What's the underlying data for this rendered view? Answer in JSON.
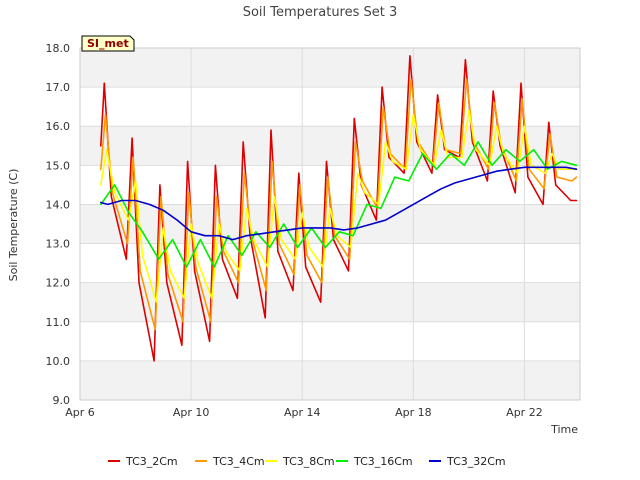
{
  "chart_data": {
    "type": "line",
    "title": "Soil Temperatures Set 3",
    "site_label": "SI_met",
    "xlabel": "Time",
    "ylabel": "Soil Temperature (C)",
    "ylim": [
      9.0,
      18.0
    ],
    "yticks": [
      9.0,
      10.0,
      11.0,
      12.0,
      13.0,
      14.0,
      15.0,
      16.0,
      17.0,
      18.0
    ],
    "xlim": [
      "2024-04-06",
      "2024-04-24"
    ],
    "xticks": [
      {
        "date": "2024-04-06",
        "label": "Apr 6"
      },
      {
        "date": "2024-04-10",
        "label": "Apr 10"
      },
      {
        "date": "2024-04-14",
        "label": "Apr 14"
      },
      {
        "date": "2024-04-18",
        "label": "Apr 18"
      },
      {
        "date": "2024-04-22",
        "label": "Apr 22"
      }
    ],
    "grid": true,
    "legend_position": "bottom",
    "series": [
      {
        "name": "TC3_2Cm",
        "color": "#dd0000",
        "x": [
          "2024-04-06 18:00",
          "2024-04-06 21:00",
          "2024-04-07 03:00",
          "2024-04-07 16:00",
          "2024-04-07 21:00",
          "2024-04-08 03:00",
          "2024-04-08 16:00",
          "2024-04-08 21:00",
          "2024-04-09 03:00",
          "2024-04-09 16:00",
          "2024-04-09 21:00",
          "2024-04-10 03:00",
          "2024-04-10 16:00",
          "2024-04-10 21:00",
          "2024-04-11 03:00",
          "2024-04-11 16:00",
          "2024-04-11 21:00",
          "2024-04-12 03:00",
          "2024-04-12 16:00",
          "2024-04-12 21:00",
          "2024-04-13 03:00",
          "2024-04-13 16:00",
          "2024-04-13 21:00",
          "2024-04-14 03:00",
          "2024-04-14 16:00",
          "2024-04-14 21:00",
          "2024-04-15 03:00",
          "2024-04-15 16:00",
          "2024-04-15 21:00",
          "2024-04-16 03:00",
          "2024-04-16 16:00",
          "2024-04-16 21:00",
          "2024-04-17 03:00",
          "2024-04-17 16:00",
          "2024-04-17 21:00",
          "2024-04-18 03:00",
          "2024-04-18 16:00",
          "2024-04-18 21:00",
          "2024-04-19 03:00",
          "2024-04-19 16:00",
          "2024-04-19 21:00",
          "2024-04-20 03:00",
          "2024-04-20 16:00",
          "2024-04-20 21:00",
          "2024-04-21 03:00",
          "2024-04-21 16:00",
          "2024-04-21 21:00",
          "2024-04-22 03:00",
          "2024-04-22 16:00",
          "2024-04-22 21:00",
          "2024-04-23 03:00",
          "2024-04-23 16:00",
          "2024-04-23 21:00"
        ],
        "y": [
          15.5,
          17.1,
          14.2,
          12.6,
          15.7,
          12.0,
          10.0,
          14.5,
          12.0,
          10.4,
          15.1,
          12.3,
          10.5,
          15.0,
          12.6,
          11.6,
          15.6,
          13.2,
          11.1,
          15.9,
          12.8,
          11.8,
          14.8,
          12.4,
          11.5,
          15.1,
          13.1,
          12.3,
          16.2,
          14.5,
          13.6,
          17.0,
          15.2,
          14.8,
          17.8,
          15.6,
          14.8,
          16.8,
          15.4,
          15.2,
          17.7,
          15.6,
          14.6,
          16.9,
          15.5,
          14.3,
          17.1,
          14.7,
          14.0,
          16.1,
          14.5,
          14.1,
          14.1
        ]
      },
      {
        "name": "TC3_4Cm",
        "color": "#ff9900",
        "x": [
          "2024-04-06 18:00",
          "2024-04-06 22:00",
          "2024-04-07 04:00",
          "2024-04-07 17:00",
          "2024-04-07 22:00",
          "2024-04-08 04:00",
          "2024-04-08 17:00",
          "2024-04-08 22:00",
          "2024-04-09 04:00",
          "2024-04-09 17:00",
          "2024-04-09 22:00",
          "2024-04-10 04:00",
          "2024-04-10 17:00",
          "2024-04-10 22:00",
          "2024-04-11 04:00",
          "2024-04-11 17:00",
          "2024-04-11 22:00",
          "2024-04-12 04:00",
          "2024-04-12 17:00",
          "2024-04-12 22:00",
          "2024-04-13 04:00",
          "2024-04-13 17:00",
          "2024-04-13 22:00",
          "2024-04-14 04:00",
          "2024-04-14 17:00",
          "2024-04-14 22:00",
          "2024-04-15 04:00",
          "2024-04-15 17:00",
          "2024-04-15 22:00",
          "2024-04-16 04:00",
          "2024-04-16 17:00",
          "2024-04-16 22:00",
          "2024-04-17 04:00",
          "2024-04-17 17:00",
          "2024-04-17 22:00",
          "2024-04-18 04:00",
          "2024-04-18 17:00",
          "2024-04-18 22:00",
          "2024-04-19 04:00",
          "2024-04-19 17:00",
          "2024-04-19 22:00",
          "2024-04-20 04:00",
          "2024-04-20 17:00",
          "2024-04-20 22:00",
          "2024-04-21 04:00",
          "2024-04-21 17:00",
          "2024-04-21 22:00",
          "2024-04-22 04:00",
          "2024-04-22 17:00",
          "2024-04-22 22:00",
          "2024-04-23 04:00",
          "2024-04-23 17:00",
          "2024-04-23 21:00"
        ],
        "y": [
          14.9,
          16.3,
          14.3,
          13.0,
          15.2,
          12.3,
          10.8,
          14.2,
          12.2,
          11.0,
          14.3,
          12.4,
          11.0,
          14.2,
          12.8,
          12.0,
          14.8,
          13.2,
          11.8,
          15.1,
          13.0,
          12.2,
          14.5,
          12.7,
          12.0,
          14.7,
          13.2,
          12.6,
          15.6,
          14.6,
          13.9,
          16.5,
          15.3,
          14.9,
          17.2,
          15.6,
          15.0,
          16.6,
          15.4,
          15.3,
          17.2,
          15.6,
          14.9,
          16.6,
          15.5,
          14.6,
          16.7,
          14.9,
          14.4,
          15.8,
          14.7,
          14.6,
          14.7
        ]
      },
      {
        "name": "TC3_8Cm",
        "color": "#ffff00",
        "x": [
          "2024-04-06 18:00",
          "2024-04-06 23:00",
          "2024-04-07 06:00",
          "2024-04-07 18:00",
          "2024-04-08 00:00",
          "2024-04-08 06:00",
          "2024-04-08 18:00",
          "2024-04-09 00:00",
          "2024-04-09 06:00",
          "2024-04-09 18:00",
          "2024-04-10 00:00",
          "2024-04-10 06:00",
          "2024-04-10 18:00",
          "2024-04-11 00:00",
          "2024-04-11 06:00",
          "2024-04-11 18:00",
          "2024-04-12 00:00",
          "2024-04-12 06:00",
          "2024-04-12 18:00",
          "2024-04-13 00:00",
          "2024-04-13 06:00",
          "2024-04-13 18:00",
          "2024-04-14 00:00",
          "2024-04-14 06:00",
          "2024-04-14 18:00",
          "2024-04-15 00:00",
          "2024-04-15 06:00",
          "2024-04-15 18:00",
          "2024-04-16 00:00",
          "2024-04-16 06:00",
          "2024-04-16 18:00",
          "2024-04-17 00:00",
          "2024-04-17 06:00",
          "2024-04-17 18:00",
          "2024-04-18 00:00",
          "2024-04-18 06:00",
          "2024-04-18 18:00",
          "2024-04-19 00:00",
          "2024-04-19 06:00",
          "2024-04-19 18:00",
          "2024-04-20 00:00",
          "2024-04-20 06:00",
          "2024-04-20 18:00",
          "2024-04-21 00:00",
          "2024-04-21 06:00",
          "2024-04-21 18:00",
          "2024-04-22 00:00",
          "2024-04-22 06:00",
          "2024-04-22 18:00",
          "2024-04-23 00:00",
          "2024-04-23 06:00",
          "2024-04-23 18:00",
          "2024-04-23 21:00"
        ],
        "y": [
          14.5,
          15.4,
          14.3,
          13.6,
          14.6,
          12.7,
          11.5,
          13.4,
          12.3,
          11.6,
          13.5,
          12.5,
          11.6,
          13.5,
          12.8,
          12.3,
          13.9,
          13.1,
          12.4,
          14.2,
          13.1,
          12.6,
          13.8,
          12.9,
          12.4,
          13.9,
          13.2,
          12.9,
          14.8,
          14.3,
          14.0,
          15.6,
          15.1,
          14.9,
          16.3,
          15.4,
          15.0,
          15.9,
          15.2,
          15.2,
          16.4,
          15.4,
          15.0,
          16.0,
          15.3,
          14.8,
          16.0,
          15.0,
          14.8,
          15.3,
          14.9,
          14.9,
          14.9
        ]
      },
      {
        "name": "TC3_16Cm",
        "color": "#00ee00",
        "x": [
          "2024-04-06 18:00",
          "2024-04-07 06:00",
          "2024-04-07 18:00",
          "2024-04-08 06:00",
          "2024-04-08 20:00",
          "2024-04-09 08:00",
          "2024-04-09 20:00",
          "2024-04-10 08:00",
          "2024-04-10 20:00",
          "2024-04-11 08:00",
          "2024-04-11 20:00",
          "2024-04-12 08:00",
          "2024-04-12 20:00",
          "2024-04-13 08:00",
          "2024-04-13 20:00",
          "2024-04-14 08:00",
          "2024-04-14 20:00",
          "2024-04-15 08:00",
          "2024-04-15 20:00",
          "2024-04-16 08:00",
          "2024-04-16 20:00",
          "2024-04-17 08:00",
          "2024-04-17 20:00",
          "2024-04-18 08:00",
          "2024-04-18 20:00",
          "2024-04-19 08:00",
          "2024-04-19 20:00",
          "2024-04-20 08:00",
          "2024-04-20 20:00",
          "2024-04-21 08:00",
          "2024-04-21 20:00",
          "2024-04-22 08:00",
          "2024-04-22 20:00",
          "2024-04-23 08:00",
          "2024-04-23 21:00"
        ],
        "y": [
          14.0,
          14.5,
          13.8,
          13.3,
          12.6,
          13.1,
          12.4,
          13.1,
          12.4,
          13.2,
          12.7,
          13.3,
          12.9,
          13.5,
          12.9,
          13.4,
          12.9,
          13.3,
          13.2,
          14.0,
          13.9,
          14.7,
          14.6,
          15.3,
          14.9,
          15.3,
          15.0,
          15.6,
          15.0,
          15.4,
          15.1,
          15.4,
          14.9,
          15.1,
          15.0
        ]
      },
      {
        "name": "TC3_32Cm",
        "color": "#0000cc",
        "x": [
          "2024-04-06 18:00",
          "2024-04-07 00:00",
          "2024-04-07 12:00",
          "2024-04-08 00:00",
          "2024-04-08 12:00",
          "2024-04-09 00:00",
          "2024-04-09 12:00",
          "2024-04-10 00:00",
          "2024-04-10 12:00",
          "2024-04-11 00:00",
          "2024-04-11 12:00",
          "2024-04-12 00:00",
          "2024-04-12 12:00",
          "2024-04-13 00:00",
          "2024-04-13 12:00",
          "2024-04-14 00:00",
          "2024-04-14 12:00",
          "2024-04-15 00:00",
          "2024-04-15 12:00",
          "2024-04-16 00:00",
          "2024-04-16 12:00",
          "2024-04-17 00:00",
          "2024-04-17 12:00",
          "2024-04-18 00:00",
          "2024-04-18 12:00",
          "2024-04-19 00:00",
          "2024-04-19 12:00",
          "2024-04-20 00:00",
          "2024-04-20 12:00",
          "2024-04-21 00:00",
          "2024-04-21 12:00",
          "2024-04-22 00:00",
          "2024-04-22 12:00",
          "2024-04-23 00:00",
          "2024-04-23 12:00",
          "2024-04-23 21:00"
        ],
        "y": [
          14.05,
          14.0,
          14.1,
          14.1,
          14.0,
          13.85,
          13.6,
          13.3,
          13.2,
          13.2,
          13.1,
          13.2,
          13.25,
          13.3,
          13.35,
          13.4,
          13.4,
          13.4,
          13.35,
          13.4,
          13.5,
          13.6,
          13.8,
          14.0,
          14.2,
          14.4,
          14.55,
          14.65,
          14.75,
          14.85,
          14.9,
          14.95,
          14.95,
          14.95,
          14.95,
          14.9
        ]
      }
    ]
  }
}
